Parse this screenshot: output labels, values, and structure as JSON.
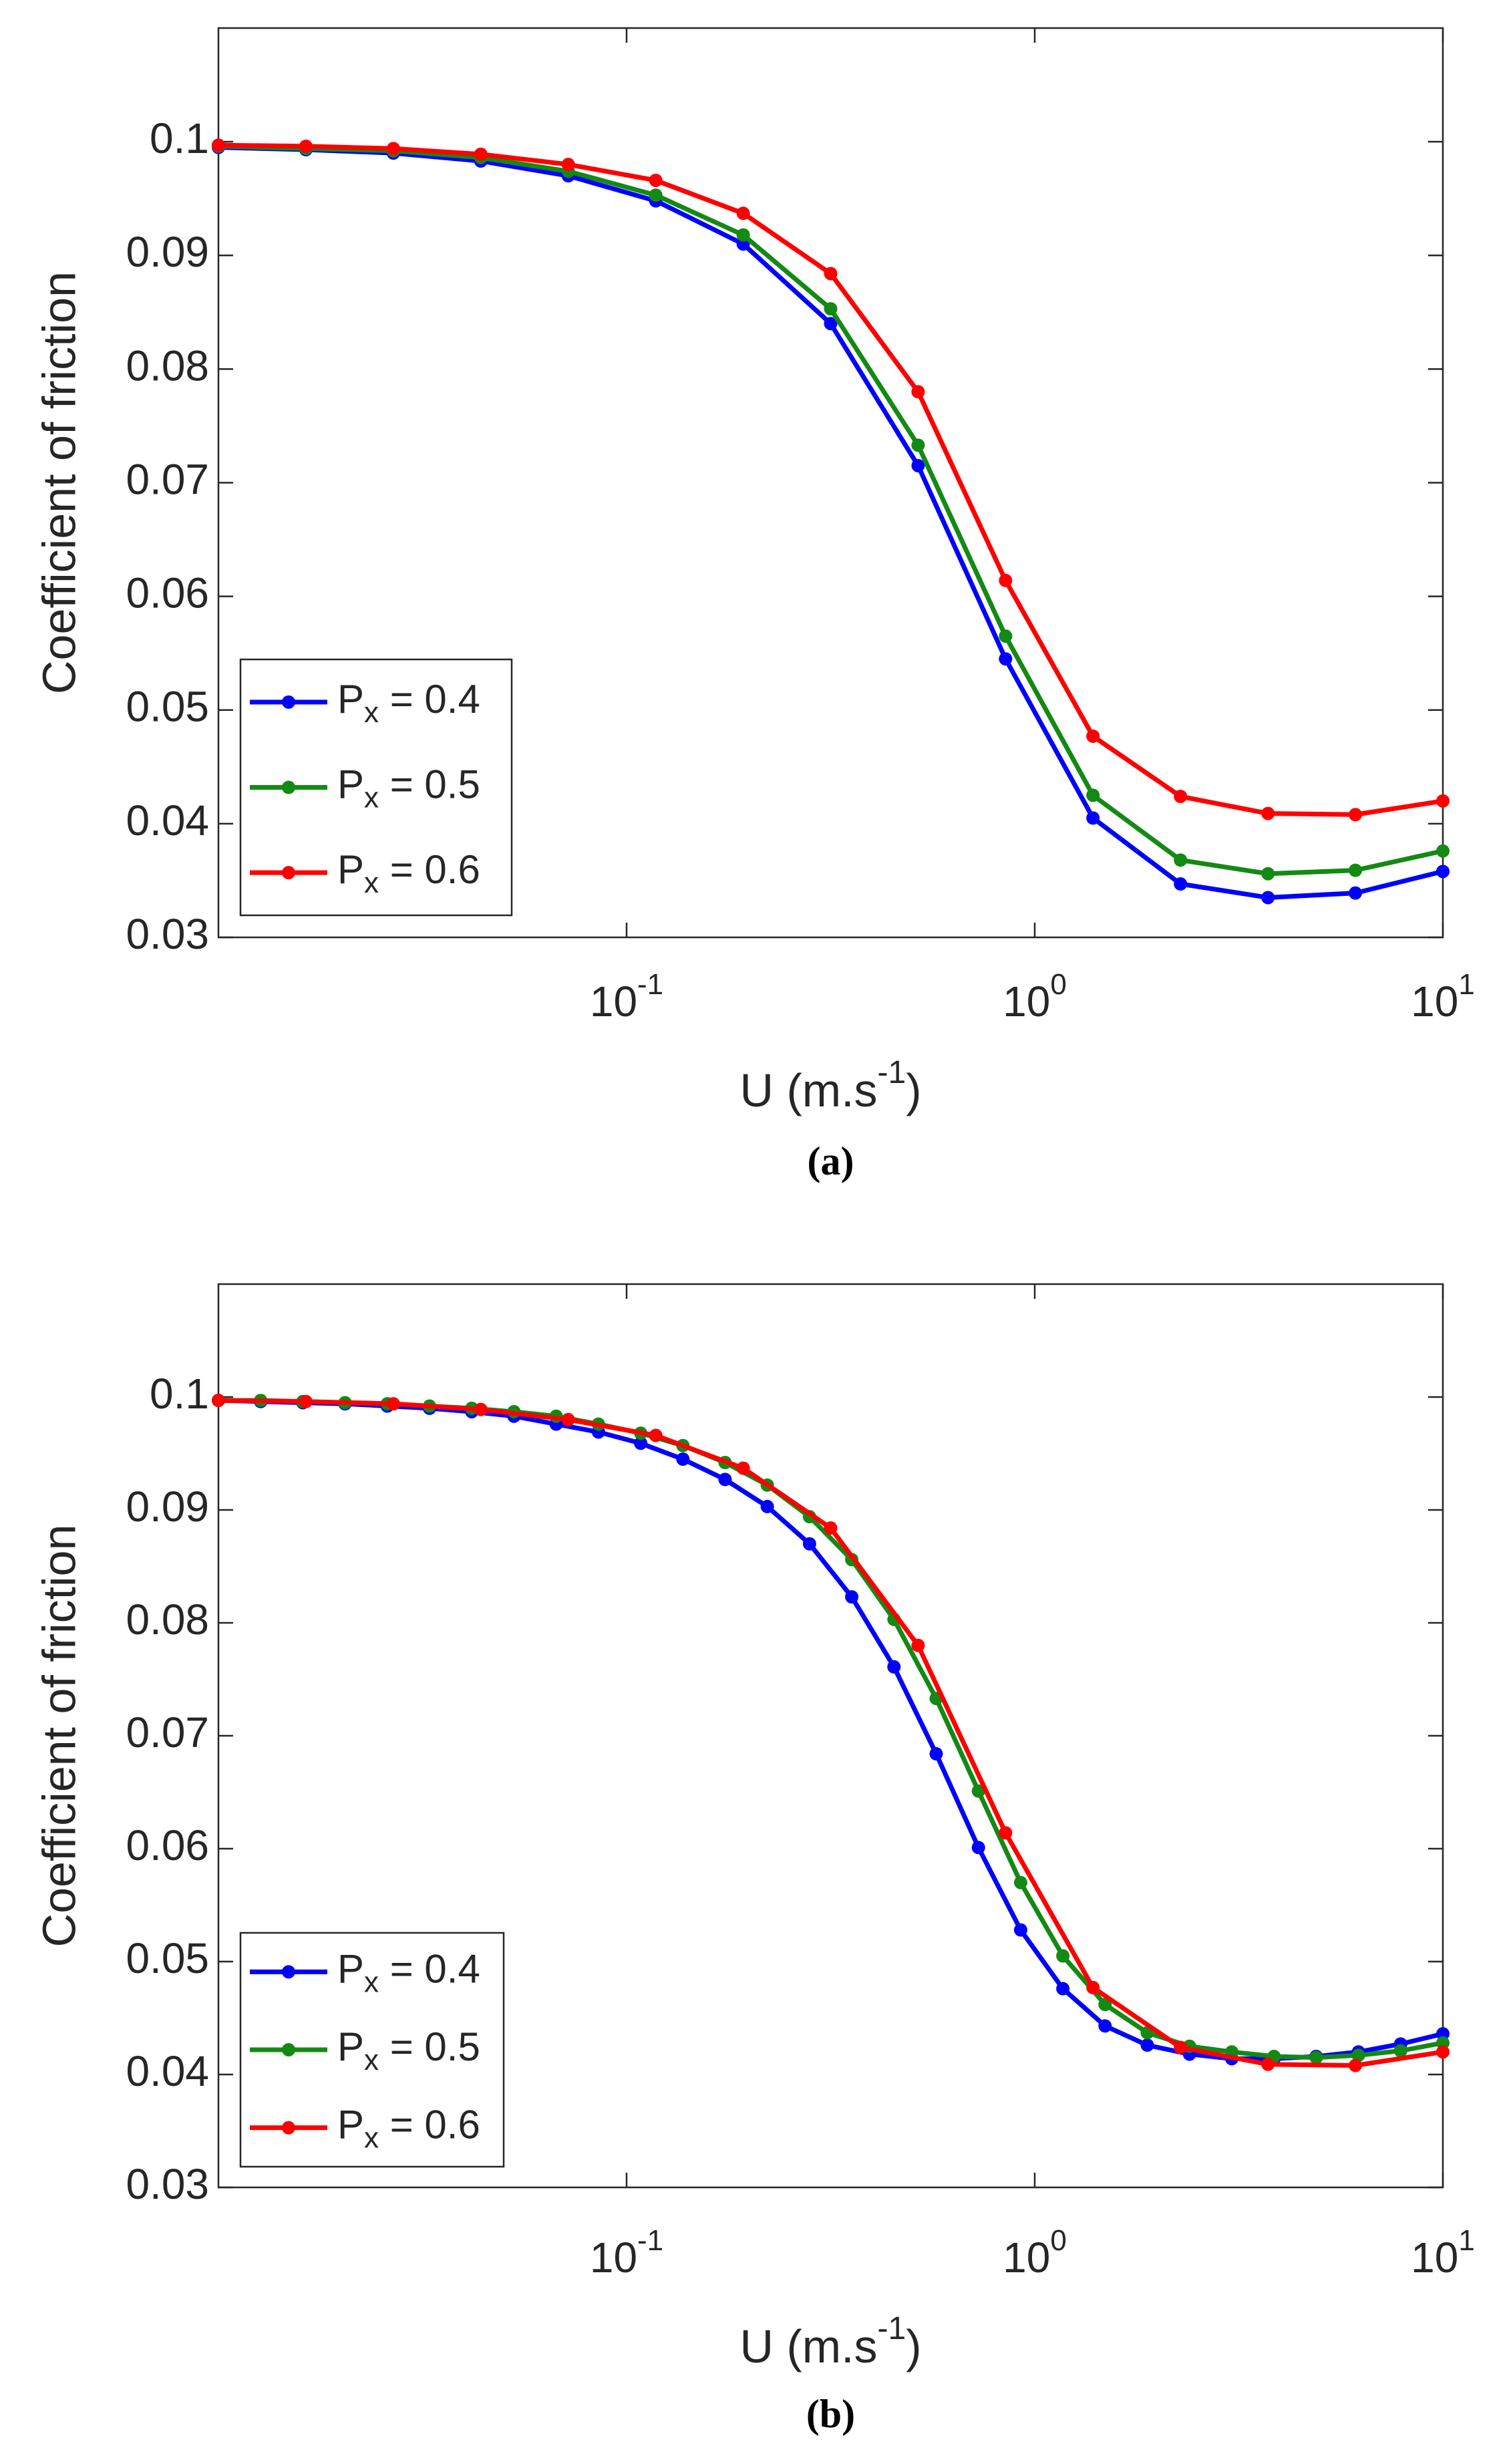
{
  "chart_data": [
    {
      "type": "line",
      "caption": "(a)",
      "ylabel": "Coefficient of friction",
      "xlabel": {
        "text": "U (m.s",
        "sup": "-1",
        "end": ")"
      },
      "xscale": "log",
      "xlim": [
        0.01,
        10
      ],
      "ylim": [
        0.03,
        0.11
      ],
      "xticks": [
        {
          "value": 0.1,
          "label": "10",
          "exp": "-1"
        },
        {
          "value": 1,
          "label": "10",
          "exp": "0"
        },
        {
          "value": 10,
          "label": "10",
          "exp": "1"
        }
      ],
      "yticks": [
        0.03,
        0.04,
        0.05,
        0.06,
        0.07,
        0.08,
        0.09,
        0.1
      ],
      "legend": "lower left",
      "series": [
        {
          "name": "P",
          "sub": "x",
          "rest": " = 0.4",
          "color": "#0000ff",
          "x": [
            0.01,
            0.01638,
            0.02683,
            0.04394,
            0.07197,
            0.1179,
            0.1931,
            0.3162,
            0.5179,
            0.8483,
            1.389,
            2.276,
            3.728,
            6.105,
            10
          ],
          "values": [
            0.0995,
            0.0993,
            0.099,
            0.0983,
            0.097,
            0.0948,
            0.091,
            0.084,
            0.0715,
            0.0545,
            0.0405,
            0.0347,
            0.0335,
            0.0339,
            0.0358
          ]
        },
        {
          "name": "P",
          "sub": "x",
          "rest": " = 0.5",
          "color": "#138a13",
          "x": [
            0.01,
            0.01638,
            0.02683,
            0.04394,
            0.07197,
            0.1179,
            0.1931,
            0.3162,
            0.5179,
            0.8483,
            1.389,
            2.276,
            3.728,
            6.105,
            10
          ],
          "values": [
            0.0996,
            0.0994,
            0.0992,
            0.0986,
            0.0974,
            0.0953,
            0.0918,
            0.0853,
            0.0733,
            0.0565,
            0.0425,
            0.0368,
            0.0356,
            0.0359,
            0.0376
          ]
        },
        {
          "name": "P",
          "sub": "x",
          "rest": " = 0.6",
          "color": "#ff0000",
          "x": [
            0.01,
            0.01638,
            0.02683,
            0.04394,
            0.07197,
            0.1179,
            0.1931,
            0.3162,
            0.5179,
            0.8483,
            1.389,
            2.276,
            3.728,
            6.105,
            10
          ],
          "values": [
            0.0997,
            0.0996,
            0.0994,
            0.0989,
            0.098,
            0.0966,
            0.0937,
            0.0884,
            0.078,
            0.0614,
            0.0477,
            0.0424,
            0.0409,
            0.0408,
            0.042
          ]
        }
      ]
    },
    {
      "type": "line",
      "caption": "(b)",
      "ylabel": "Coefficient of friction",
      "xlabel": {
        "text": "U (m.s",
        "sup": "-1",
        "end": ")"
      },
      "xscale": "log",
      "xlim": [
        0.01,
        10
      ],
      "ylim": [
        0.03,
        0.11
      ],
      "xticks": [
        {
          "value": 0.1,
          "label": "10",
          "exp": "-1"
        },
        {
          "value": 1,
          "label": "10",
          "exp": "0"
        },
        {
          "value": 10,
          "label": "10",
          "exp": "1"
        }
      ],
      "yticks": [
        0.03,
        0.04,
        0.05,
        0.06,
        0.07,
        0.08,
        0.09,
        0.1
      ],
      "legend": "lower left",
      "series": [
        {
          "name": "P",
          "sub": "x",
          "rest": " = 0.4",
          "color": "#0000ff",
          "x": [
            0.01,
            0.01269,
            0.0161,
            0.02043,
            0.02593,
            0.0329,
            0.04175,
            0.05298,
            0.06723,
            0.08532,
            0.1083,
            0.1374,
            0.1743,
            0.2212,
            0.2807,
            0.3562,
            0.452,
            0.5736,
            0.7279,
            0.9237,
            1.172,
            1.487,
            1.887,
            2.395,
            3.039,
            3.857,
            4.894,
            6.211,
            7.881,
            10
          ],
          "values": [
            0.0997,
            0.0996,
            0.0995,
            0.0994,
            0.0992,
            0.099,
            0.0987,
            0.0983,
            0.0976,
            0.0969,
            0.0959,
            0.0945,
            0.0927,
            0.0903,
            0.087,
            0.0823,
            0.0761,
            0.0684,
            0.0601,
            0.0528,
            0.0476,
            0.0443,
            0.0426,
            0.0418,
            0.0414,
            0.0414,
            0.0416,
            0.042,
            0.0427,
            0.0436
          ]
        },
        {
          "name": "P",
          "sub": "x",
          "rest": " = 0.5",
          "color": "#138a13",
          "x": [
            0.01,
            0.01269,
            0.0161,
            0.02043,
            0.02593,
            0.0329,
            0.04175,
            0.05298,
            0.06723,
            0.08532,
            0.1083,
            0.1374,
            0.1743,
            0.2212,
            0.2807,
            0.3562,
            0.452,
            0.5736,
            0.7279,
            0.9237,
            1.172,
            1.487,
            1.887,
            2.395,
            3.039,
            3.857,
            4.894,
            6.211,
            7.881,
            10
          ],
          "values": [
            0.0997,
            0.0997,
            0.0996,
            0.0995,
            0.0994,
            0.0992,
            0.099,
            0.0987,
            0.0983,
            0.0976,
            0.0968,
            0.0957,
            0.0942,
            0.0922,
            0.0894,
            0.0856,
            0.0803,
            0.0733,
            0.0651,
            0.057,
            0.0505,
            0.0462,
            0.0437,
            0.0425,
            0.042,
            0.0416,
            0.0415,
            0.0417,
            0.0421,
            0.0428
          ]
        },
        {
          "name": "P",
          "sub": "x",
          "rest": " = 0.6",
          "color": "#ff0000",
          "x": [
            0.01,
            0.01638,
            0.02683,
            0.04394,
            0.07197,
            0.1179,
            0.1931,
            0.3162,
            0.5179,
            0.8483,
            1.389,
            2.276,
            3.728,
            6.105,
            10
          ],
          "values": [
            0.0997,
            0.0996,
            0.0994,
            0.0989,
            0.098,
            0.0966,
            0.0937,
            0.0884,
            0.078,
            0.0614,
            0.0477,
            0.0424,
            0.0409,
            0.0408,
            0.042
          ]
        }
      ]
    }
  ]
}
